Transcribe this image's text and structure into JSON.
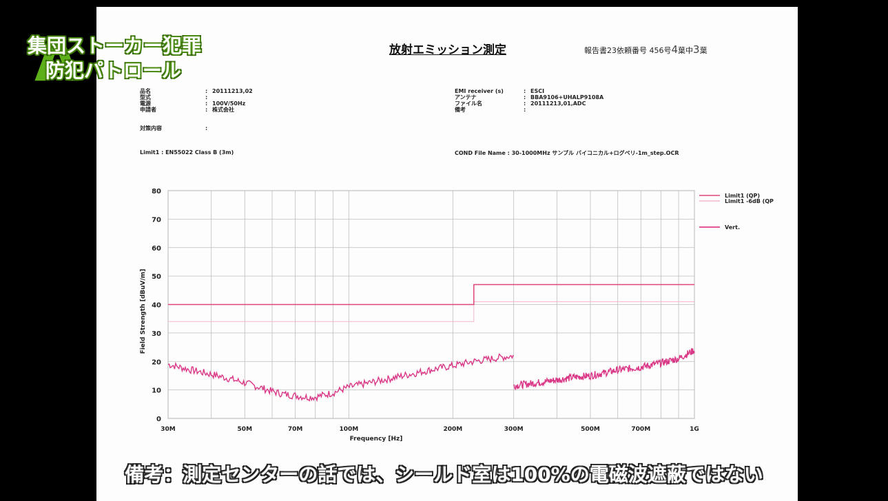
{
  "overlay": {
    "logo_line1": "集団ストーカー犯罪",
    "logo_line2": "防犯パトロール",
    "subtitle": "備考：測定センターの話では、シールド室は100%の電磁波遮蔽ではない"
  },
  "document": {
    "title": "放射エミッション測定",
    "report_no_prefix": "報告書23依頼番号 456号",
    "report_no_hand1": "4",
    "report_no_mid": "葉中",
    "report_no_hand2": "3",
    "report_no_suffix": "葉",
    "meta_left": [
      {
        "key": "品名",
        "value": "20111213,02"
      },
      {
        "key": "型式",
        "value": ""
      },
      {
        "key": "電源",
        "value": "100V/50Hz"
      },
      {
        "key": "申請者",
        "value": "株式会社"
      }
    ],
    "meta_left_extra": {
      "key": "対策内容",
      "value": ""
    },
    "meta_right": [
      {
        "key": "EMI receiver (s)",
        "value": "ESCI"
      },
      {
        "key": "アンテナ",
        "value": "BBA9106+UHALP9108A"
      },
      {
        "key": "ファイル名",
        "value": "20111213,01,ADC"
      },
      {
        "key": "備考",
        "value": ""
      }
    ],
    "limit_label": "Limit1 : EN55022 Class B (3m)",
    "cond_label": "COND File Name : 30-1000MHz サンプル バイコニカル+ログペリ-1m_step.OCR"
  },
  "colors": {
    "limit": "#e0457a",
    "limit_minus6": "#f2b8c8",
    "vert": "#d6217a",
    "grid": "#bdbdbd"
  },
  "chart_data": {
    "type": "line",
    "xscale": "log",
    "xlim": [
      30,
      1000
    ],
    "ylim": [
      0,
      80
    ],
    "xlabel": "Frequency [Hz]",
    "ylabel": "Field Strength [dBuV/m]",
    "xticks": [
      30,
      50,
      70,
      100,
      200,
      300,
      500,
      700,
      1000
    ],
    "xtick_labels": [
      "30M",
      "50M",
      "70M",
      "100M",
      "200M",
      "300M",
      "500M",
      "700M",
      "1G"
    ],
    "yticks": [
      0,
      10,
      20,
      30,
      40,
      50,
      60,
      70,
      80
    ],
    "grid": true,
    "legend_position": "right",
    "series": [
      {
        "name": "Limit1 (QP)",
        "x": [
          30,
          230,
          230,
          1000
        ],
        "y": [
          40,
          40,
          47,
          47
        ]
      },
      {
        "name": "Limit1 -6dB (QP",
        "x": [
          30,
          230,
          230,
          1000
        ],
        "y": [
          34,
          34,
          41,
          41
        ]
      },
      {
        "name": "Vert.",
        "segments": [
          {
            "x": [
              30,
              35,
              40,
              45,
              50,
              55,
              60,
              65,
              70,
              75,
              80,
              90,
              100,
              120,
              150,
              180,
              200,
              230,
              260,
              299
            ],
            "y": [
              19,
              17,
              15.5,
              14,
              12.5,
              11,
              9.5,
              8.5,
              8,
              7.5,
              7.5,
              9,
              11,
              13,
              15.5,
              17.5,
              18.5,
              20,
              21,
              22
            ]
          },
          {
            "x": [
              300,
              350,
              400,
              450,
              500,
              550,
              600,
              700,
              800,
              900,
              1000
            ],
            "y": [
              11.5,
              12.5,
              13.5,
              14.5,
              15,
              16,
              17,
              18,
              19.5,
              21,
              24
            ]
          }
        ]
      }
    ]
  }
}
